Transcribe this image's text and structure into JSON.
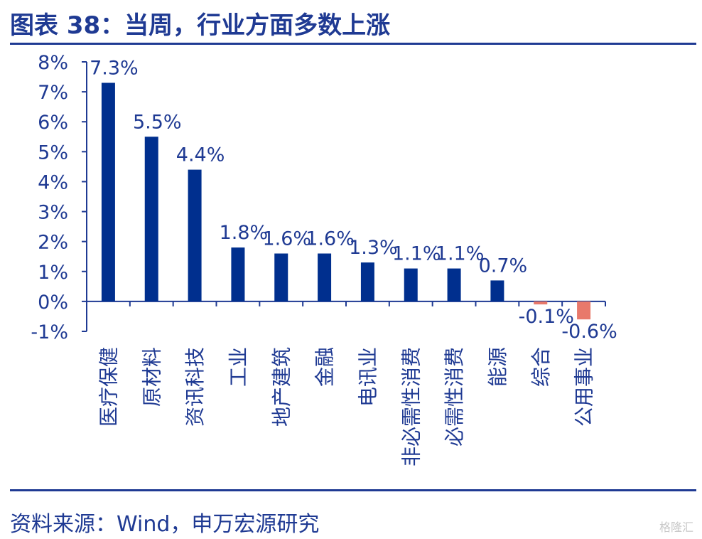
{
  "header": {
    "title": "图表 38：当周，行业方面多数上涨"
  },
  "footer": {
    "source": "资料来源：Wind，申万宏源研究",
    "watermark": "格隆汇"
  },
  "chart_data": {
    "type": "bar",
    "categories": [
      "医疗保健",
      "原材料",
      "资讯科技",
      "工业",
      "地产建筑",
      "金融",
      "电讯业",
      "非必需性消费",
      "必需性消费",
      "能源",
      "综合",
      "公用事业"
    ],
    "values": [
      7.3,
      5.5,
      4.4,
      1.8,
      1.6,
      1.6,
      1.3,
      1.1,
      1.1,
      0.7,
      -0.1,
      -0.6
    ],
    "data_labels": [
      "7.3%",
      "5.5%",
      "4.4%",
      "1.8%",
      "1.6%",
      "1.6%",
      "1.3%",
      "1.1%",
      "1.1%",
      "0.7%",
      "-0.1%",
      "-0.6%"
    ],
    "yticks": [
      "8%",
      "7%",
      "6%",
      "5%",
      "4%",
      "3%",
      "2%",
      "1%",
      "0%",
      "-1%"
    ],
    "ylim": [
      -1,
      8
    ],
    "colors": {
      "positive": "#002f8e",
      "negative": "#e8796b",
      "text": "#1f3a93",
      "axis": "#1f3a93"
    },
    "grid": false
  }
}
